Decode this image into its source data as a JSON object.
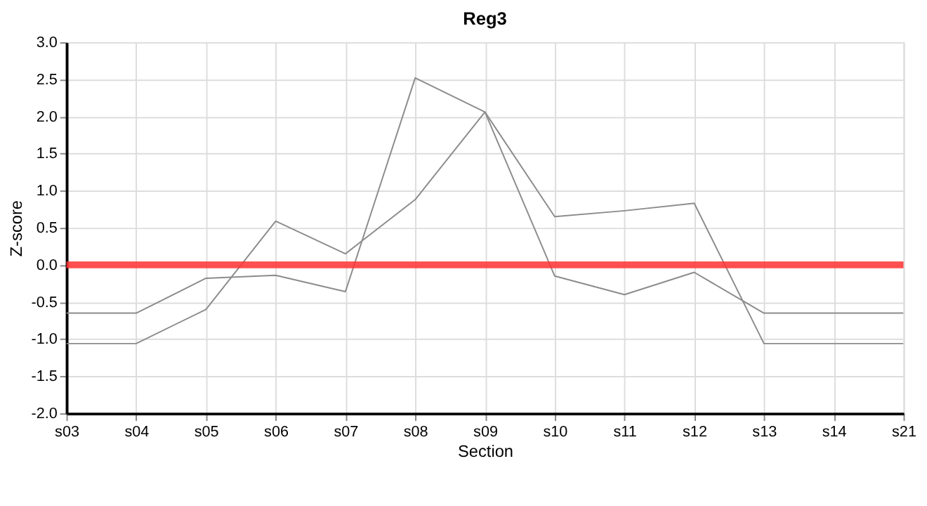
{
  "chart_data": {
    "type": "line",
    "title": "Reg3",
    "xlabel": "Section",
    "ylabel": "Z-score",
    "categories": [
      "s03",
      "s04",
      "s05",
      "s06",
      "s07",
      "s08",
      "s09",
      "s10",
      "s11",
      "s12",
      "s13",
      "s14",
      "s21"
    ],
    "series": [
      {
        "color": "#8c8c8c",
        "values": [
          -0.65,
          -0.65,
          -0.18,
          -0.14,
          -0.36,
          2.52,
          2.06,
          -0.15,
          -0.4,
          -0.1,
          -0.65,
          -0.65,
          -0.65
        ]
      },
      {
        "color": "#8c8c8c",
        "values": [
          -1.06,
          -1.06,
          -0.6,
          0.59,
          0.15,
          0.88,
          2.06,
          0.65,
          0.73,
          0.83,
          -1.06,
          -1.06,
          -1.06
        ]
      }
    ],
    "ylim": [
      -2.0,
      3.0
    ],
    "yticks": [
      {
        "value": -2.0,
        "label": "-2.0"
      },
      {
        "value": -1.5,
        "label": "-1.5"
      },
      {
        "value": -1.0,
        "label": "-1.0"
      },
      {
        "value": -0.5,
        "label": "-0.5"
      },
      {
        "value": 0,
        "label": "0.0"
      },
      {
        "value": 0.5,
        "label": "0.5"
      },
      {
        "value": 1.0,
        "label": "1.0"
      },
      {
        "value": 1.5,
        "label": "1.5"
      },
      {
        "value": 2.0,
        "label": "2.0"
      },
      {
        "value": 2.5,
        "label": "2.5"
      },
      {
        "value": 3.0,
        "label": "3.0"
      }
    ],
    "ref_lines": [
      {
        "axis": "y",
        "value": 0,
        "color": "#ff3333"
      }
    ],
    "grid": true,
    "marker": "none",
    "line_style": "solid"
  }
}
